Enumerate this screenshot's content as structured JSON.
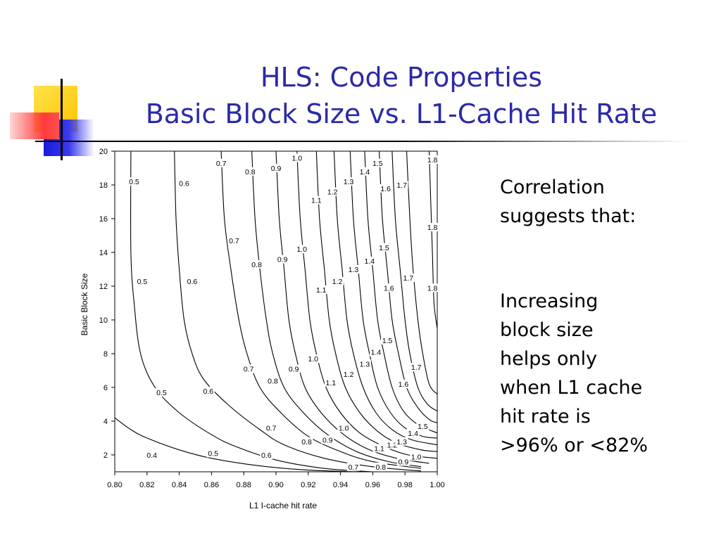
{
  "slide": {
    "title_line1": "HLS: Code Properties",
    "title_line2": "Basic Block Size vs. L1-Cache Hit Rate",
    "text_line1": "Correlation",
    "text_line2": "suggests that:",
    "body_lines": [
      "Increasing",
      "block size",
      "helps only",
      "when L1 cache",
      "hit rate is",
      ">96% or <82%"
    ],
    "colors": {
      "title": "#2a2aa8",
      "deco_yellow": "#ffd21e",
      "deco_red": "#ff3b3b",
      "deco_blue": "#2222dd"
    }
  },
  "chart_data": {
    "type": "contour",
    "xlabel": "L1 I-cache hit rate",
    "ylabel": "Basic Block Size",
    "xlim": [
      0.8,
      1.0
    ],
    "ylim": [
      1,
      20
    ],
    "x_ticks": [
      "0.80",
      "0.82",
      "0.84",
      "0.86",
      "0.88",
      "0.90",
      "0.92",
      "0.94",
      "0.96",
      "0.98",
      "1.00"
    ],
    "y_ticks": [
      "2",
      "4",
      "6",
      "8",
      "10",
      "12",
      "14",
      "16",
      "18",
      "20"
    ],
    "levels": [
      {
        "level": "0.4",
        "points": [
          [
            0.8,
            4.2
          ],
          [
            0.81,
            3.5
          ],
          [
            0.82,
            3.0
          ],
          [
            0.84,
            2.3
          ],
          [
            0.86,
            1.8
          ],
          [
            0.89,
            1.35
          ],
          [
            0.92,
            1.1
          ],
          [
            0.95,
            1.0
          ]
        ],
        "labels": [
          [
            0.823,
            2.0
          ]
        ]
      },
      {
        "level": "0.5",
        "points": [
          [
            0.81,
            20
          ],
          [
            0.81,
            14
          ],
          [
            0.812,
            11
          ],
          [
            0.816,
            8
          ],
          [
            0.825,
            6
          ],
          [
            0.84,
            4.5
          ],
          [
            0.86,
            3.2
          ],
          [
            0.875,
            2.5
          ],
          [
            0.9,
            1.7
          ],
          [
            0.93,
            1.2
          ],
          [
            0.96,
            1.0
          ]
        ],
        "labels": [
          [
            0.812,
            18.2
          ],
          [
            0.817,
            12.3
          ],
          [
            0.829,
            5.7
          ],
          [
            0.861,
            2.1
          ]
        ]
      },
      {
        "level": "0.6",
        "points": [
          [
            0.837,
            20
          ],
          [
            0.838,
            16
          ],
          [
            0.84,
            13
          ],
          [
            0.843,
            10
          ],
          [
            0.848,
            8
          ],
          [
            0.855,
            6.5
          ],
          [
            0.87,
            5
          ],
          [
            0.89,
            3.5
          ],
          [
            0.905,
            2.6
          ],
          [
            0.93,
            1.8
          ],
          [
            0.96,
            1.3
          ],
          [
            0.99,
            1.05
          ]
        ],
        "labels": [
          [
            0.843,
            18.1
          ],
          [
            0.848,
            12.3
          ],
          [
            0.858,
            5.8
          ],
          [
            0.894,
            2.0
          ]
        ]
      },
      {
        "level": "0.7",
        "points": [
          [
            0.866,
            20
          ],
          [
            0.868,
            16
          ],
          [
            0.872,
            13
          ],
          [
            0.877,
            10
          ],
          [
            0.882,
            8
          ],
          [
            0.89,
            6
          ],
          [
            0.903,
            4.5
          ],
          [
            0.92,
            3.1
          ],
          [
            0.94,
            2.2
          ],
          [
            0.96,
            1.6
          ],
          [
            0.99,
            1.2
          ]
        ],
        "labels": [
          [
            0.866,
            19.3
          ],
          [
            0.874,
            14.7
          ],
          [
            0.883,
            7.1
          ],
          [
            0.897,
            3.6
          ],
          [
            0.948,
            1.3
          ]
        ]
      },
      {
        "level": "0.8",
        "points": [
          [
            0.885,
            20
          ],
          [
            0.887,
            16
          ],
          [
            0.89,
            13
          ],
          [
            0.894,
            10
          ],
          [
            0.898,
            8
          ],
          [
            0.905,
            6
          ],
          [
            0.917,
            4.5
          ],
          [
            0.932,
            3.2
          ],
          [
            0.95,
            2.2
          ],
          [
            0.97,
            1.6
          ],
          [
            0.99,
            1.3
          ]
        ],
        "labels": [
          [
            0.884,
            18.8
          ],
          [
            0.888,
            13.3
          ],
          [
            0.898,
            6.4
          ],
          [
            0.919,
            2.8
          ],
          [
            0.965,
            1.3
          ]
        ]
      },
      {
        "level": "0.9",
        "points": [
          [
            0.9,
            20
          ],
          [
            0.902,
            16
          ],
          [
            0.905,
            13
          ],
          [
            0.908,
            10
          ],
          [
            0.912,
            8
          ],
          [
            0.918,
            6
          ],
          [
            0.928,
            4.5
          ],
          [
            0.942,
            3.2
          ],
          [
            0.958,
            2.3
          ],
          [
            0.975,
            1.8
          ],
          [
            0.995,
            1.5
          ]
        ],
        "labels": [
          [
            0.9,
            19.0
          ],
          [
            0.904,
            13.6
          ],
          [
            0.911,
            7.1
          ],
          [
            0.932,
            2.9
          ],
          [
            0.979,
            1.6
          ]
        ]
      },
      {
        "level": "1.0",
        "points": [
          [
            0.913,
            20
          ],
          [
            0.915,
            16
          ],
          [
            0.918,
            13
          ],
          [
            0.921,
            10
          ],
          [
            0.925,
            8
          ],
          [
            0.931,
            6
          ],
          [
            0.94,
            4.5
          ],
          [
            0.952,
            3.3
          ],
          [
            0.967,
            2.5
          ],
          [
            0.982,
            2.0
          ],
          [
            1.0,
            1.8
          ]
        ],
        "labels": [
          [
            0.913,
            19.6
          ],
          [
            0.916,
            14.2
          ],
          [
            0.923,
            7.7
          ],
          [
            0.942,
            3.6
          ],
          [
            0.987,
            1.9
          ]
        ]
      },
      {
        "level": "1.1",
        "points": [
          [
            0.925,
            20
          ],
          [
            0.927,
            16
          ],
          [
            0.93,
            13
          ],
          [
            0.933,
            10
          ],
          [
            0.937,
            8
          ],
          [
            0.943,
            6
          ],
          [
            0.952,
            4.5
          ],
          [
            0.963,
            3.4
          ],
          [
            0.975,
            2.7
          ],
          [
            0.99,
            2.3
          ],
          [
            1.0,
            2.2
          ]
        ],
        "labels": [
          [
            0.925,
            17.1
          ],
          [
            0.928,
            11.8
          ],
          [
            0.934,
            6.3
          ],
          [
            0.964,
            2.4
          ]
        ]
      },
      {
        "level": "1.2",
        "points": [
          [
            0.936,
            20
          ],
          [
            0.938,
            16
          ],
          [
            0.941,
            13
          ],
          [
            0.944,
            10
          ],
          [
            0.948,
            8
          ],
          [
            0.954,
            6
          ],
          [
            0.962,
            4.5
          ],
          [
            0.972,
            3.5
          ],
          [
            0.984,
            2.9
          ],
          [
            1.0,
            2.6
          ]
        ],
        "labels": [
          [
            0.935,
            17.6
          ],
          [
            0.938,
            12.3
          ],
          [
            0.945,
            6.8
          ],
          [
            0.972,
            2.6
          ]
        ]
      },
      {
        "level": "1.3",
        "points": [
          [
            0.946,
            20
          ],
          [
            0.948,
            16
          ],
          [
            0.951,
            13
          ],
          [
            0.954,
            10
          ],
          [
            0.958,
            8
          ],
          [
            0.963,
            6
          ],
          [
            0.971,
            4.5
          ],
          [
            0.98,
            3.6
          ],
          [
            0.991,
            3.1
          ],
          [
            1.0,
            3.0
          ]
        ],
        "labels": [
          [
            0.945,
            18.2
          ],
          [
            0.948,
            13.0
          ],
          [
            0.955,
            7.4
          ],
          [
            0.978,
            2.8
          ]
        ]
      },
      {
        "level": "1.4",
        "points": [
          [
            0.955,
            20
          ],
          [
            0.957,
            16
          ],
          [
            0.96,
            13
          ],
          [
            0.963,
            10
          ],
          [
            0.967,
            8
          ],
          [
            0.972,
            6
          ],
          [
            0.979,
            4.6
          ],
          [
            0.988,
            3.8
          ],
          [
            1.0,
            3.3
          ]
        ],
        "labels": [
          [
            0.955,
            18.8
          ],
          [
            0.958,
            13.5
          ],
          [
            0.962,
            8.1
          ],
          [
            0.985,
            3.3
          ]
        ]
      },
      {
        "level": "1.5",
        "points": [
          [
            0.964,
            20
          ],
          [
            0.966,
            16
          ],
          [
            0.969,
            13
          ],
          [
            0.972,
            10
          ],
          [
            0.976,
            8
          ],
          [
            0.981,
            6
          ],
          [
            0.988,
            4.8
          ],
          [
            0.995,
            4.1
          ],
          [
            1.0,
            3.9
          ]
        ],
        "labels": [
          [
            0.963,
            19.3
          ],
          [
            0.967,
            14.3
          ],
          [
            0.969,
            8.8
          ],
          [
            0.991,
            3.7
          ]
        ]
      },
      {
        "level": "1.6",
        "points": [
          [
            0.972,
            20
          ],
          [
            0.974,
            16
          ],
          [
            0.977,
            13
          ],
          [
            0.98,
            10
          ],
          [
            0.983,
            8
          ],
          [
            0.988,
            6
          ],
          [
            0.994,
            5
          ],
          [
            1.0,
            4.6
          ]
        ],
        "labels": [
          [
            0.968,
            17.8
          ],
          [
            0.97,
            11.9
          ],
          [
            0.979,
            6.2
          ]
        ]
      },
      {
        "level": "1.7",
        "points": [
          [
            0.981,
            20
          ],
          [
            0.983,
            16
          ],
          [
            0.985,
            13
          ],
          [
            0.988,
            10
          ],
          [
            0.991,
            8
          ],
          [
            0.995,
            6.2
          ],
          [
            1.0,
            5.6
          ]
        ],
        "labels": [
          [
            0.978,
            18.0
          ],
          [
            0.982,
            12.5
          ],
          [
            0.987,
            7.2
          ]
        ]
      },
      {
        "level": "1.8",
        "points": [
          [
            0.995,
            20
          ],
          [
            0.996,
            17
          ],
          [
            0.997,
            14
          ],
          [
            0.998,
            11
          ],
          [
            1.0,
            9.5
          ]
        ],
        "labels": [
          [
            0.997,
            19.5
          ],
          [
            0.997,
            15.5
          ],
          [
            0.997,
            11.9
          ]
        ]
      }
    ]
  }
}
